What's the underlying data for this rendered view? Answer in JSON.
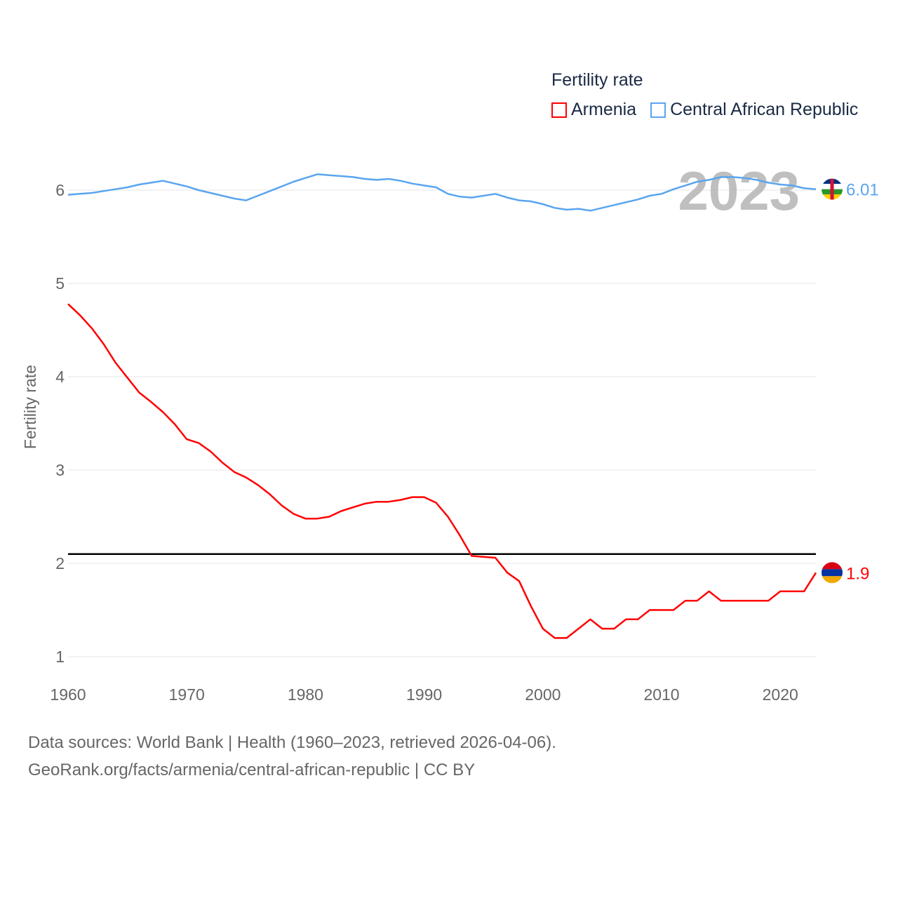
{
  "legend": {
    "title": "Fertility rate"
  },
  "footer": {
    "line1": "Data sources: World Bank | Health (1960–2023, retrieved 2026-04-06).",
    "line2": "GeoRank.org/facts/armenia/central-african-republic | CC BY"
  },
  "chart_data": {
    "type": "line",
    "title": "Fertility rate",
    "xlabel": "",
    "ylabel": "Fertility rate",
    "xlim": [
      1960,
      2023
    ],
    "ylim": [
      0.8,
      6.5
    ],
    "xticks": [
      1960,
      1970,
      1980,
      1990,
      2000,
      2010,
      2020
    ],
    "yticks": [
      1,
      2,
      3,
      4,
      5,
      6
    ],
    "grid": true,
    "legend_position": "top-right",
    "year_label": "2023",
    "reference_line": {
      "value": 2.1,
      "color": "#000000"
    },
    "x_start": 1960,
    "series": [
      {
        "name": "Armenia",
        "color": "#ff0000",
        "end_label": "1.9",
        "flag": "armenia-flag",
        "values": [
          4.78,
          4.66,
          4.52,
          4.35,
          4.15,
          3.99,
          3.83,
          3.73,
          3.62,
          3.49,
          3.33,
          3.29,
          3.2,
          3.08,
          2.98,
          2.92,
          2.84,
          2.74,
          2.62,
          2.53,
          2.48,
          2.48,
          2.5,
          2.56,
          2.6,
          2.64,
          2.66,
          2.66,
          2.68,
          2.71,
          2.71,
          2.65,
          2.5,
          2.3,
          2.08,
          2.07,
          2.06,
          1.9,
          1.81,
          1.54,
          1.3,
          1.2,
          1.2,
          1.3,
          1.4,
          1.3,
          1.3,
          1.4,
          1.4,
          1.5,
          1.5,
          1.5,
          1.6,
          1.6,
          1.7,
          1.6,
          1.6,
          1.6,
          1.6,
          1.6,
          1.7,
          1.7,
          1.7,
          1.9
        ]
      },
      {
        "name": "Central African Republic",
        "color": "#5aa5ef",
        "end_label": "6.01",
        "flag": "central-african-republic-flag",
        "values": [
          5.95,
          5.96,
          5.97,
          5.99,
          6.01,
          6.03,
          6.06,
          6.08,
          6.1,
          6.07,
          6.04,
          6.0,
          5.97,
          5.94,
          5.91,
          5.89,
          5.94,
          5.99,
          6.04,
          6.09,
          6.13,
          6.17,
          6.16,
          6.15,
          6.14,
          6.12,
          6.11,
          6.12,
          6.1,
          6.07,
          6.05,
          6.03,
          5.96,
          5.93,
          5.92,
          5.94,
          5.96,
          5.92,
          5.89,
          5.88,
          5.85,
          5.81,
          5.79,
          5.8,
          5.78,
          5.81,
          5.84,
          5.87,
          5.9,
          5.94,
          5.96,
          6.01,
          6.05,
          6.09,
          6.11,
          6.14,
          6.14,
          6.13,
          6.11,
          6.08,
          6.06,
          6.05,
          6.02,
          6.01
        ]
      }
    ]
  }
}
